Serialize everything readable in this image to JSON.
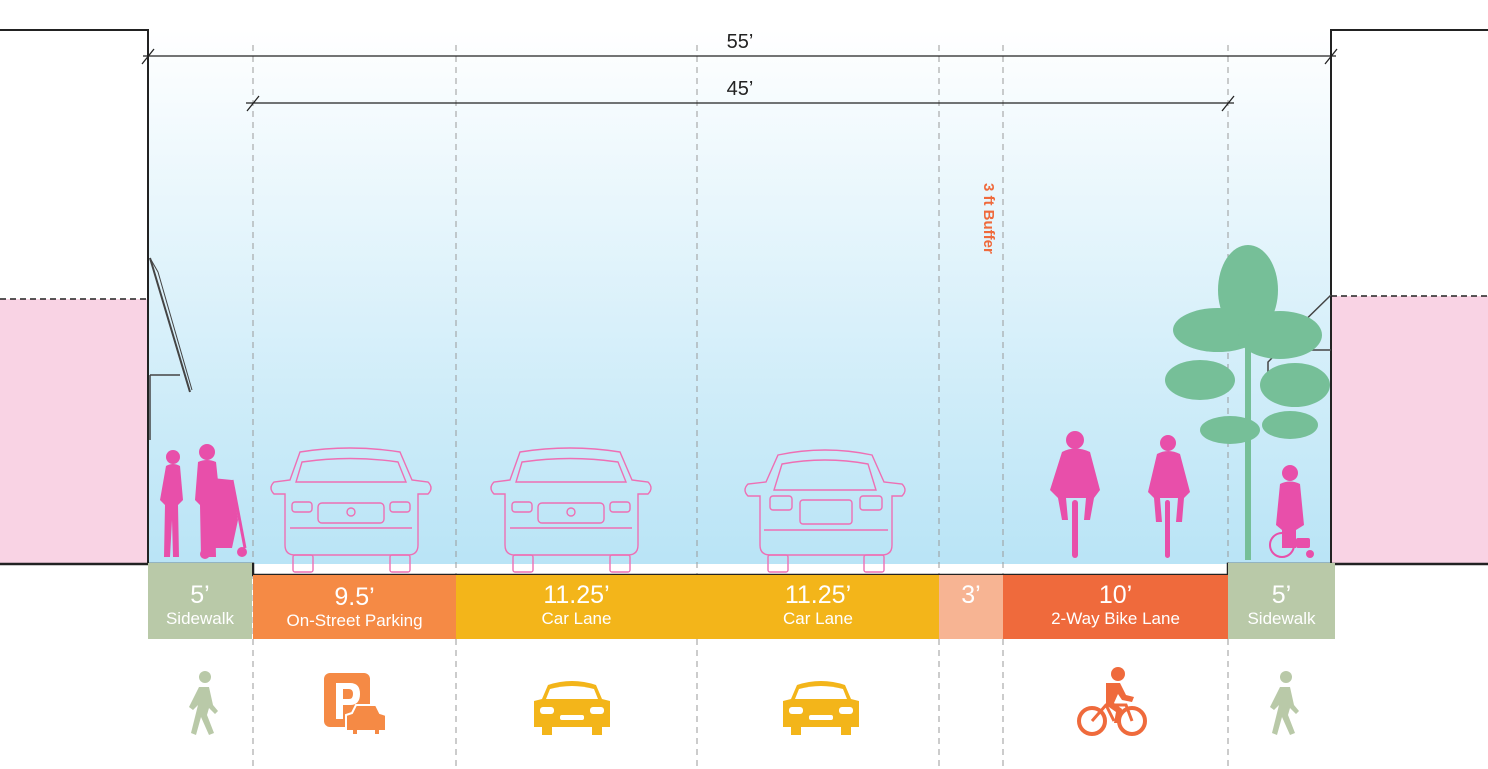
{
  "dimensions": {
    "total": "55’",
    "curb_to_curb": "45’"
  },
  "buffer_note": "3 ft Buffer",
  "segments": [
    {
      "width": "5’",
      "name": "Sidewalk",
      "color": "#b9c9a8",
      "icon": "pedestrian-icon"
    },
    {
      "width": "9.5’",
      "name": "On-Street Parking",
      "color": "#f58a45",
      "icon": "parking-icon"
    },
    {
      "width": "11.25’",
      "name": "Car Lane",
      "color": "#f3b51a",
      "icon": "car-icon"
    },
    {
      "width": "11.25’",
      "name": "Car Lane",
      "color": "#f3b51a",
      "icon": "car-icon"
    },
    {
      "width": "3’",
      "name": "",
      "color": "#f7b493",
      "icon": ""
    },
    {
      "width": "10’",
      "name": "2-Way Bike Lane",
      "color": "#ef6a3c",
      "icon": "bicycle-icon"
    },
    {
      "width": "5’",
      "name": "Sidewalk",
      "color": "#b9c9a8",
      "icon": "pedestrian-icon"
    }
  ],
  "colors": {
    "sky_top": "#ffffff",
    "sky_bottom": "#b9e4f6",
    "building": "#f9d3e4",
    "people": "#e84faa",
    "vehicle_outline": "#ee6fb4",
    "tree": "#76bf98",
    "guide_line": "#9a9a9a",
    "buffer_text": "#ef6a3c"
  }
}
